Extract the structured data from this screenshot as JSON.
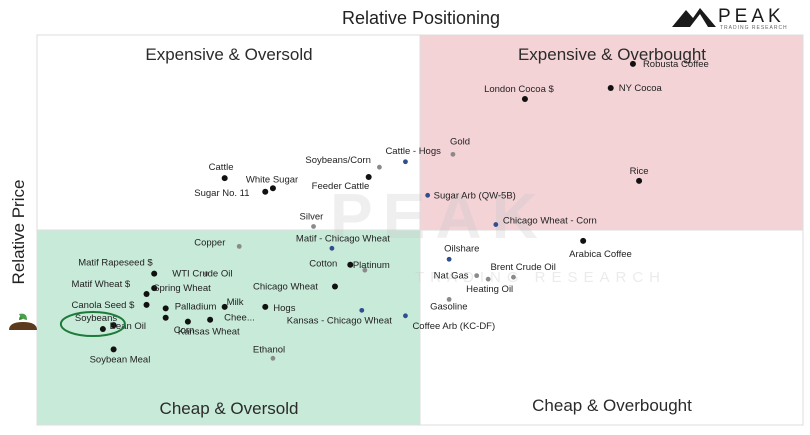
{
  "logo": {
    "text": "PEAK",
    "subtext": "TRADING RESEARCH"
  },
  "watermark": {
    "main": "PEAK",
    "sub": "TRADING RESEARCH"
  },
  "chart_data": {
    "type": "scatter",
    "title": "Relative Positioning",
    "xlabel": "",
    "ylabel": "Relative Price",
    "xlim": [
      0,
      100
    ],
    "ylim": [
      0,
      100
    ],
    "grid": false,
    "quadrants": [
      {
        "label": "Expensive & Oversold",
        "position": "top-left",
        "color": "#ffffff"
      },
      {
        "label": "Expensive & Overbought",
        "position": "top-right",
        "color": "#f3d3d6"
      },
      {
        "label": "Cheap & Oversold",
        "position": "bottom-left",
        "color": "#c8ead9"
      },
      {
        "label": "Cheap & Overbought",
        "position": "bottom-right",
        "color": "#ffffff"
      }
    ],
    "highlight": "Soybeans",
    "colors": {
      "point": "#111111",
      "blue_point": "#2f4f8f",
      "highlight_ring": "#1e7a3a",
      "divider": "#dddddd"
    },
    "points": [
      {
        "name": "Robusta Coffee",
        "x": 77.8,
        "y": 92.6,
        "color": "black"
      },
      {
        "name": "London Cocoa $",
        "x": 63.7,
        "y": 83.6,
        "color": "black"
      },
      {
        "name": "NY Cocoa",
        "x": 74.9,
        "y": 86.4,
        "color": "black"
      },
      {
        "name": "Rice",
        "x": 78.6,
        "y": 62.6,
        "color": "black"
      },
      {
        "name": "Gold",
        "x": 54.3,
        "y": 69.4,
        "color": "gray"
      },
      {
        "name": "Cattle - Hogs",
        "x": 48.1,
        "y": 67.5,
        "color": "blue"
      },
      {
        "name": "Soybeans/Corn",
        "x": 44.7,
        "y": 66.1,
        "color": "gray"
      },
      {
        "name": "Feeder Cattle",
        "x": 43.3,
        "y": 63.6,
        "color": "black"
      },
      {
        "name": "Cattle",
        "x": 24.5,
        "y": 63.3,
        "color": "black"
      },
      {
        "name": "White Sugar",
        "x": 30.8,
        "y": 60.7,
        "color": "black"
      },
      {
        "name": "Sugar No. 11",
        "x": 29.8,
        "y": 59.8,
        "color": "black"
      },
      {
        "name": "Sugar Arb (QW-5B)",
        "x": 51.0,
        "y": 58.9,
        "color": "blue"
      },
      {
        "name": "Silver",
        "x": 36.1,
        "y": 50.9,
        "color": "gray"
      },
      {
        "name": "Chicago Wheat - Corn",
        "x": 59.9,
        "y": 51.4,
        "color": "blue"
      },
      {
        "name": "Matif - Chicago Wheat",
        "x": 38.5,
        "y": 45.3,
        "color": "blue"
      },
      {
        "name": "Copper",
        "x": 26.4,
        "y": 45.8,
        "color": "gray"
      },
      {
        "name": "Arabica Coffee",
        "x": 71.3,
        "y": 47.2,
        "color": "black"
      },
      {
        "name": "Oilshare",
        "x": 53.8,
        "y": 42.5,
        "color": "blue"
      },
      {
        "name": "Cotton",
        "x": 40.9,
        "y": 41.1,
        "color": "black"
      },
      {
        "name": "Platinum",
        "x": 42.8,
        "y": 39.7,
        "color": "gray"
      },
      {
        "name": "WTI Crude Oil",
        "x": 22.1,
        "y": 38.8,
        "color": "gray"
      },
      {
        "name": "Matif Rapeseed $",
        "x": 15.3,
        "y": 38.8,
        "color": "black"
      },
      {
        "name": "Brent Crude Oil",
        "x": 62.2,
        "y": 37.9,
        "color": "gray"
      },
      {
        "name": "Nat Gas",
        "x": 57.4,
        "y": 38.3,
        "color": "gray"
      },
      {
        "name": "Heating Oil",
        "x": 58.9,
        "y": 37.4,
        "color": "gray"
      },
      {
        "name": "Chicago Wheat",
        "x": 38.9,
        "y": 35.5,
        "color": "black"
      },
      {
        "name": "Spring Wheat",
        "x": 15.3,
        "y": 35.1,
        "color": "black"
      },
      {
        "name": "Matif Wheat $",
        "x": 14.3,
        "y": 33.6,
        "color": "black"
      },
      {
        "name": "Gasoline",
        "x": 53.8,
        "y": 32.2,
        "color": "gray"
      },
      {
        "name": "Canola Seed $",
        "x": 14.3,
        "y": 30.8,
        "color": "black"
      },
      {
        "name": "Palladium",
        "x": 16.8,
        "y": 29.9,
        "color": "black"
      },
      {
        "name": "Milk",
        "x": 24.5,
        "y": 30.3,
        "color": "black"
      },
      {
        "name": "Hogs",
        "x": 29.8,
        "y": 30.3,
        "color": "black"
      },
      {
        "name": "Kansas - Chicago Wheat",
        "x": 42.4,
        "y": 29.4,
        "color": "blue"
      },
      {
        "name": "Coffee Arb (KC-DF)",
        "x": 48.1,
        "y": 28.0,
        "color": "blue"
      },
      {
        "name": "Soybeans",
        "x": 8.6,
        "y": 24.6,
        "color": "black"
      },
      {
        "name": "Bean Oil",
        "x": 10.0,
        "y": 25.6,
        "color": "black"
      },
      {
        "name": "Corn",
        "x": 16.8,
        "y": 27.5,
        "color": "black"
      },
      {
        "name": "Chee...",
        "x": 22.6,
        "y": 27.0,
        "color": "black"
      },
      {
        "name": "Kansas Wheat",
        "x": 19.7,
        "y": 26.5,
        "color": "black"
      },
      {
        "name": "Soybean Meal",
        "x": 10.0,
        "y": 19.4,
        "color": "black"
      },
      {
        "name": "Ethanol",
        "x": 30.8,
        "y": 17.1,
        "color": "gray"
      }
    ]
  }
}
